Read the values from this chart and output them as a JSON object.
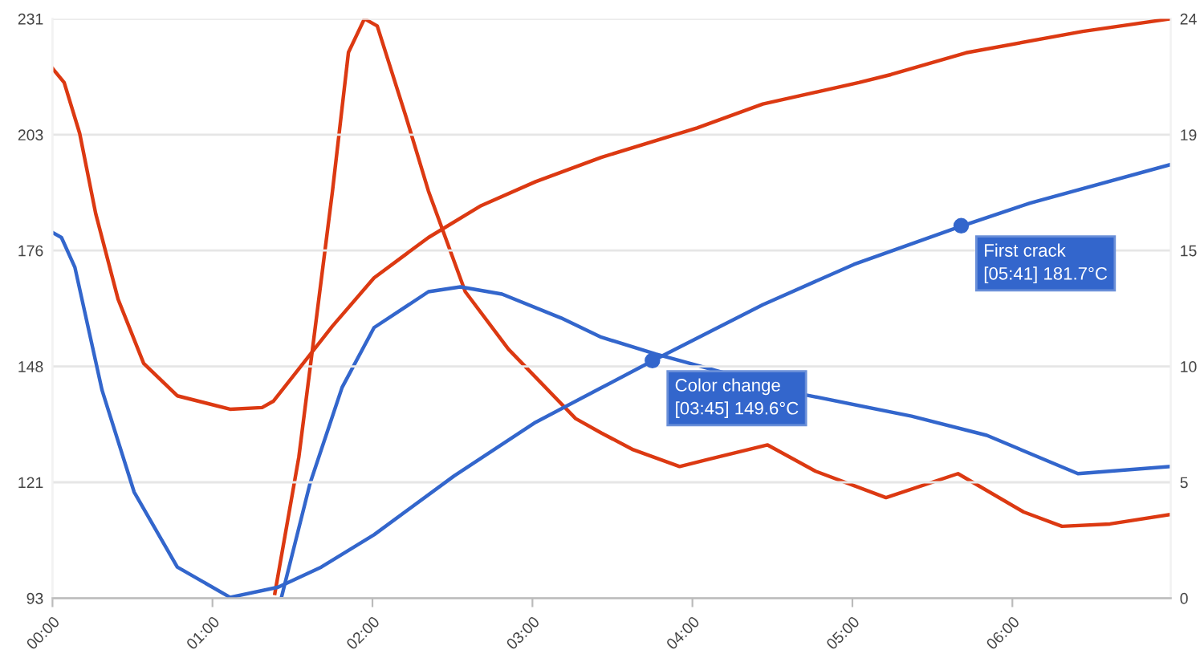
{
  "chart_data": {
    "type": "line",
    "xlim": [
      0,
      6.99
    ],
    "xticks": [
      {
        "value": 0,
        "label": "00:00"
      },
      {
        "value": 1,
        "label": "01:00"
      },
      {
        "value": 2,
        "label": "02:00"
      },
      {
        "value": 3,
        "label": "03:00"
      },
      {
        "value": 4,
        "label": "04:00"
      },
      {
        "value": 5,
        "label": "05:00"
      },
      {
        "value": 6,
        "label": "06:00"
      }
    ],
    "ylim": [
      93,
      231
    ],
    "yticks": [
      93,
      {
        "value": 120.6,
        "label": "121"
      },
      {
        "value": 148.2,
        "label": "148"
      },
      {
        "value": 175.8,
        "label": "176"
      },
      {
        "value": 203.4,
        "label": "203"
      },
      231
    ],
    "y2lim": [
      0,
      24.2
    ],
    "y2ticks": [
      0,
      {
        "value": 4.84,
        "label": "5"
      },
      {
        "value": 9.68,
        "label": "10"
      },
      {
        "value": 14.52,
        "label": "15"
      },
      {
        "value": 19.36,
        "label": "19"
      },
      {
        "value": 24.2,
        "label": "24"
      }
    ],
    "grid": "y",
    "series": [
      {
        "color": "#dc3912",
        "axis": "y",
        "x": [
          0,
          0.073,
          0.17,
          0.27,
          0.41,
          0.57,
          0.78,
          1.11,
          1.31,
          1.38,
          1.54,
          1.75,
          2.01,
          2.35,
          2.68,
          3.02,
          3.43,
          4.03,
          4.44,
          5.04,
          5.24,
          5.71,
          6.44,
          6.99
        ],
        "values": [
          219.2,
          215.8,
          203.7,
          184.6,
          164.2,
          148.9,
          141.2,
          138.0,
          138.4,
          139.9,
          147.6,
          157.8,
          169.3,
          178.9,
          186.5,
          192.2,
          198.0,
          205.0,
          210.7,
          215.8,
          217.7,
          222.9,
          228.0,
          231.0
        ]
      },
      {
        "color": "#3366cc",
        "axis": "y",
        "x": [
          0,
          0.056,
          0.14,
          0.31,
          0.51,
          0.78,
          1.11,
          1.41,
          1.68,
          2.01,
          2.51,
          3.02,
          3.43,
          3.75,
          4.44,
          5.01,
          5.68,
          6.11,
          6.99
        ],
        "values": [
          180.1,
          178.9,
          171.8,
          142.5,
          118.3,
          100.4,
          93.2,
          95.6,
          100.4,
          108.1,
          122.1,
          134.9,
          143.1,
          149.5,
          162.9,
          172.5,
          181.6,
          187.1,
          196.3
        ]
      },
      {
        "color": "#dc3912",
        "axis": "y2",
        "x": [
          1.39,
          1.54,
          1.75,
          1.85,
          1.95,
          2.03,
          2.21,
          2.35,
          2.58,
          2.85,
          3.27,
          3.43,
          3.63,
          3.92,
          4.1,
          4.47,
          4.77,
          5.21,
          5.66,
          6.07,
          6.31,
          6.61,
          6.99
        ],
        "values": [
          0.2,
          5.9,
          17.0,
          22.8,
          24.2,
          23.9,
          20.1,
          17.0,
          12.8,
          10.4,
          7.5,
          6.9,
          6.2,
          5.5,
          5.8,
          6.4,
          5.3,
          4.2,
          5.2,
          3.6,
          3.0,
          3.1,
          3.5
        ]
      },
      {
        "color": "#3366cc",
        "axis": "y2",
        "x": [
          1.43,
          1.61,
          1.81,
          2.01,
          2.35,
          2.55,
          2.81,
          3.18,
          3.43,
          3.77,
          4.7,
          5.37,
          5.84,
          6.41,
          6.99
        ],
        "values": [
          0,
          4.8,
          8.8,
          11.3,
          12.8,
          13.0,
          12.7,
          11.7,
          10.9,
          10.2,
          8.5,
          7.6,
          6.8,
          5.2,
          5.5
        ]
      }
    ],
    "annotations": [
      {
        "text": "Color change\n[03:45] 149.6°C",
        "x": 3.75,
        "y": 149.6
      },
      {
        "text": "First crack\n[05:41] 181.7°C",
        "x": 5.68,
        "y": 181.7
      }
    ]
  }
}
